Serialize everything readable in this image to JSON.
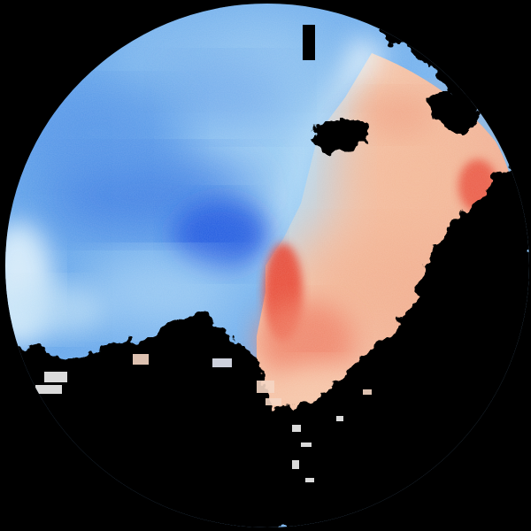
{
  "image": {
    "subject": "doppler-radar-velocity-sweep",
    "background_color": "#000000",
    "colors": {
      "inbound_deep": "#1e56e0",
      "inbound_mid": "#4c8ee8",
      "inbound_light": "#8cc4f2",
      "near_zero": "#e8f6fb",
      "outbound_light": "#f8d2b0",
      "outbound_mid": "#f2a07c",
      "outbound_strong": "#ec5540",
      "outbound_peak": "#e23a2e"
    }
  }
}
